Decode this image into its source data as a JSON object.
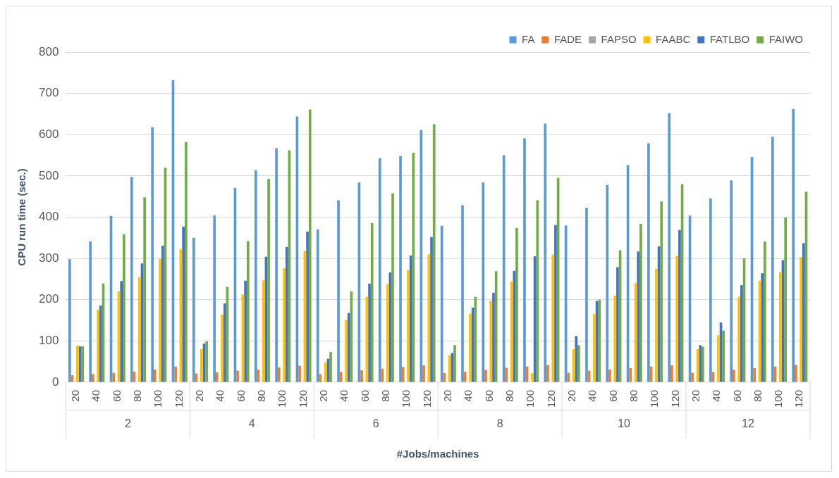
{
  "chart_data": {
    "type": "bar",
    "xlabel": "#Jobs/machines",
    "ylabel": "CPU run time (sec.)",
    "categories": [
      "20",
      "40",
      "60",
      "80",
      "100",
      "120",
      "20",
      "40",
      "60",
      "80",
      "100",
      "120",
      "20",
      "40",
      "60",
      "80",
      "100",
      "120",
      "20",
      "40",
      "60",
      "80",
      "100",
      "120",
      "20",
      "40",
      "60",
      "80",
      "100",
      "120",
      "20",
      "40",
      "60",
      "80",
      "100",
      "120"
    ],
    "annotations": [
      "2",
      "4",
      "6",
      "8",
      "10",
      "12"
    ],
    "series": [
      {
        "name": "FA",
        "color": "#5b9bd5",
        "values": [
          298,
          341,
          403,
          497,
          618,
          732,
          350,
          404,
          471,
          514,
          567,
          644,
          370,
          441,
          484,
          543,
          548,
          611,
          379,
          429,
          484,
          550,
          591,
          627,
          380,
          423,
          478,
          526,
          579,
          652,
          404,
          445,
          489,
          546,
          595,
          662
        ]
      },
      {
        "name": "FADE",
        "color": "#ed7d31",
        "values": [
          17,
          20,
          23,
          26,
          31,
          38,
          21,
          24,
          28,
          31,
          36,
          40,
          20,
          25,
          29,
          33,
          37,
          41,
          22,
          26,
          30,
          35,
          38,
          42,
          23,
          28,
          31,
          34,
          38,
          41,
          23,
          25,
          30,
          34,
          38,
          42
        ]
      },
      {
        "name": "FAPSO",
        "color": "#a5a5a5",
        "values": [
          null,
          null,
          null,
          null,
          null,
          null,
          null,
          null,
          null,
          null,
          null,
          null,
          null,
          null,
          null,
          null,
          null,
          null,
          null,
          null,
          null,
          null,
          null,
          null,
          null,
          null,
          null,
          null,
          null,
          null,
          null,
          null,
          null,
          null,
          null,
          null
        ]
      },
      {
        "name": "FAABC",
        "color": "#ffc000",
        "values": [
          89,
          176,
          220,
          255,
          299,
          323,
          80,
          164,
          213,
          247,
          276,
          318,
          48,
          151,
          207,
          237,
          272,
          310,
          65,
          166,
          197,
          244,
          22,
          309,
          80,
          165,
          210,
          240,
          275,
          306,
          80,
          114,
          207,
          246,
          267,
          303
        ]
      },
      {
        "name": "FATLBO",
        "color": "#4472c4",
        "values": [
          87,
          186,
          245,
          288,
          331,
          377,
          94,
          191,
          246,
          304,
          328,
          365,
          57,
          168,
          239,
          266,
          307,
          352,
          71,
          181,
          217,
          270,
          305,
          381,
          112,
          197,
          279,
          317,
          329,
          369,
          90,
          145,
          235,
          264,
          296,
          337
        ]
      },
      {
        "name": "FAIWO",
        "color": "#70ad47",
        "values": [
          87,
          239,
          358,
          448,
          520,
          582,
          99,
          231,
          342,
          493,
          562,
          661,
          73,
          220,
          386,
          458,
          556,
          625,
          90,
          207,
          269,
          374,
          441,
          495,
          90,
          200,
          320,
          384,
          438,
          480,
          86,
          125,
          300,
          341,
          399,
          462
        ]
      }
    ],
    "ylim": [
      0,
      800
    ],
    "yticks": [
      0,
      100,
      200,
      300,
      400,
      500,
      600,
      700,
      800
    ],
    "grid": "y",
    "legend": "top right"
  }
}
